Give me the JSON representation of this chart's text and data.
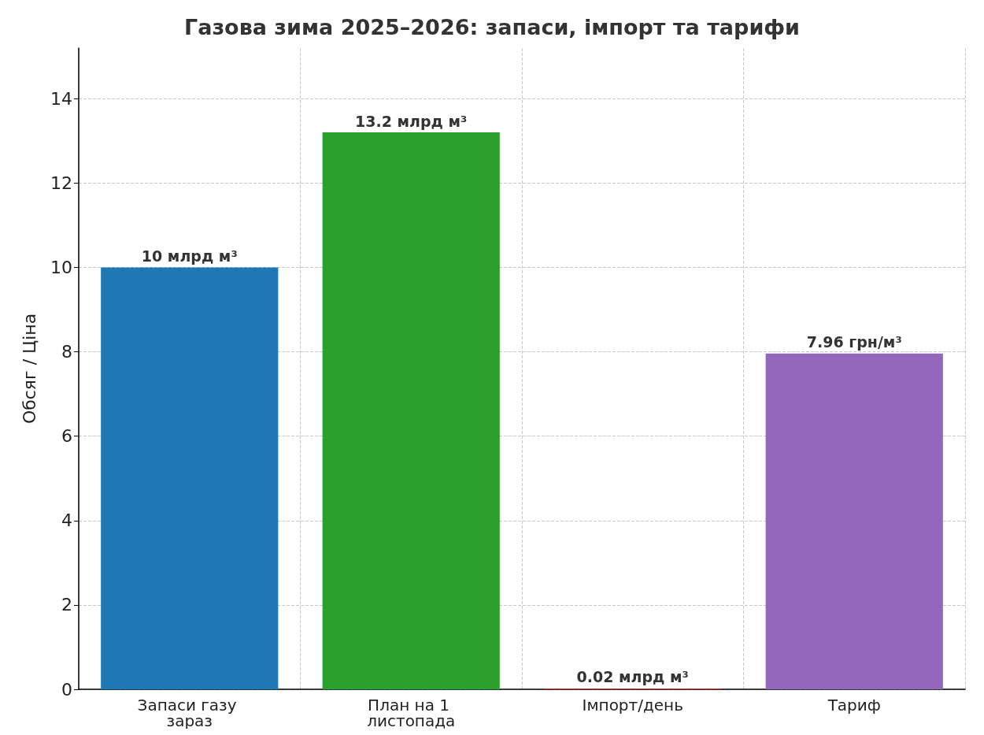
{
  "chart_data": {
    "type": "bar",
    "title": "Газова зима 2025–2026: запаси, імпорт та тарифи",
    "ylabel": "Обсяг / Ціна",
    "categories": [
      "Запаси газу зараз",
      "План на 1 листопада",
      "Імпорт/день",
      "Тариф"
    ],
    "values": [
      10,
      13.2,
      0.02,
      7.96
    ],
    "colors": [
      "#1f77b4",
      "#2ca02c",
      "#d62728",
      "#9467bd"
    ],
    "value_labels": [
      "10 млрд м³",
      "13.2 млрд м³",
      "0.02 млрд м³",
      "7.96 грн/м³"
    ],
    "ylim": [
      0,
      15.2
    ],
    "yticks": [
      0,
      2,
      4,
      6,
      8,
      10,
      12,
      14
    ],
    "grid": true
  }
}
